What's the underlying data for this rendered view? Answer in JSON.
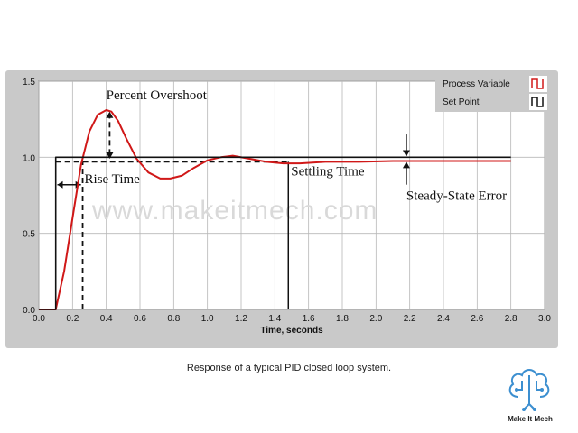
{
  "chart_data": {
    "type": "line",
    "title": "",
    "xlabel": "Time, seconds",
    "ylabel": "",
    "xlim": [
      0.0,
      3.0
    ],
    "ylim": [
      0.0,
      1.5
    ],
    "x_ticks": [
      "0.0",
      "0.2",
      "0.4",
      "0.6",
      "0.8",
      "1.0",
      "1.2",
      "1.4",
      "1.6",
      "1.8",
      "2.0",
      "2.2",
      "2.4",
      "2.6",
      "2.8",
      "3.0"
    ],
    "y_ticks": [
      "0.0",
      "0.5",
      "1.0",
      "1.5"
    ],
    "grid": true,
    "legend_position": "top-right",
    "series": [
      {
        "name": "Process Variable",
        "color": "#d01818",
        "x": [
          0.0,
          0.1,
          0.15,
          0.2,
          0.25,
          0.3,
          0.35,
          0.4,
          0.43,
          0.47,
          0.52,
          0.58,
          0.65,
          0.72,
          0.78,
          0.85,
          0.92,
          1.0,
          1.08,
          1.15,
          1.25,
          1.35,
          1.45,
          1.55,
          1.7,
          1.9,
          2.1,
          2.3,
          2.5,
          2.8
        ],
        "y": [
          0.0,
          0.0,
          0.25,
          0.6,
          0.95,
          1.17,
          1.28,
          1.31,
          1.3,
          1.24,
          1.12,
          0.99,
          0.9,
          0.86,
          0.86,
          0.88,
          0.93,
          0.98,
          1.0,
          1.01,
          0.99,
          0.97,
          0.96,
          0.96,
          0.97,
          0.97,
          0.975,
          0.975,
          0.975,
          0.975
        ]
      },
      {
        "name": "Set Point",
        "color": "#111111",
        "x": [
          0.0,
          0.1,
          0.1,
          2.8
        ],
        "y": [
          0.0,
          0.0,
          1.0,
          1.0
        ]
      }
    ],
    "annotations": {
      "percent_overshoot": "Percent Overshoot",
      "rise_time": "Rise Time",
      "settling_time": "Settling Time",
      "steady_state_error": "Steady-State Error"
    }
  },
  "watermark": "www.makeitmech.com",
  "caption": "Response of a typical PID closed loop system.",
  "brand": "Make It Mech"
}
